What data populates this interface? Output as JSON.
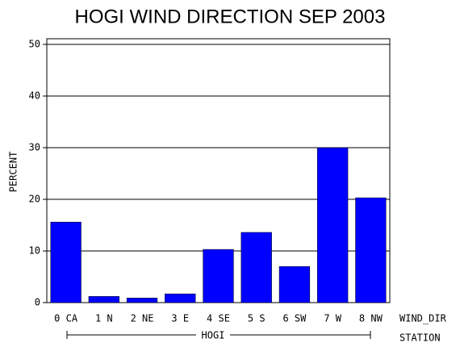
{
  "chart_data": {
    "type": "bar",
    "title": "HOGI WIND DIRECTION SEP 2003",
    "categories": [
      "0 CA",
      "1 N",
      "2 NE",
      "3 E",
      "4 SE",
      "5 S",
      "6 SW",
      "7 W",
      "8 NW"
    ],
    "values": [
      15.6,
      1.2,
      0.9,
      1.7,
      10.3,
      13.6,
      7.0,
      30.0,
      20.3
    ],
    "color": "#0000ff",
    "x_label": "WIND_DIR",
    "group_label": "HOGI",
    "group_axis_label": "STATION",
    "y_label": "PERCENT",
    "ylim": [
      0,
      50
    ],
    "yticks": [
      0,
      10,
      20,
      30,
      40,
      50
    ],
    "grid": true
  }
}
